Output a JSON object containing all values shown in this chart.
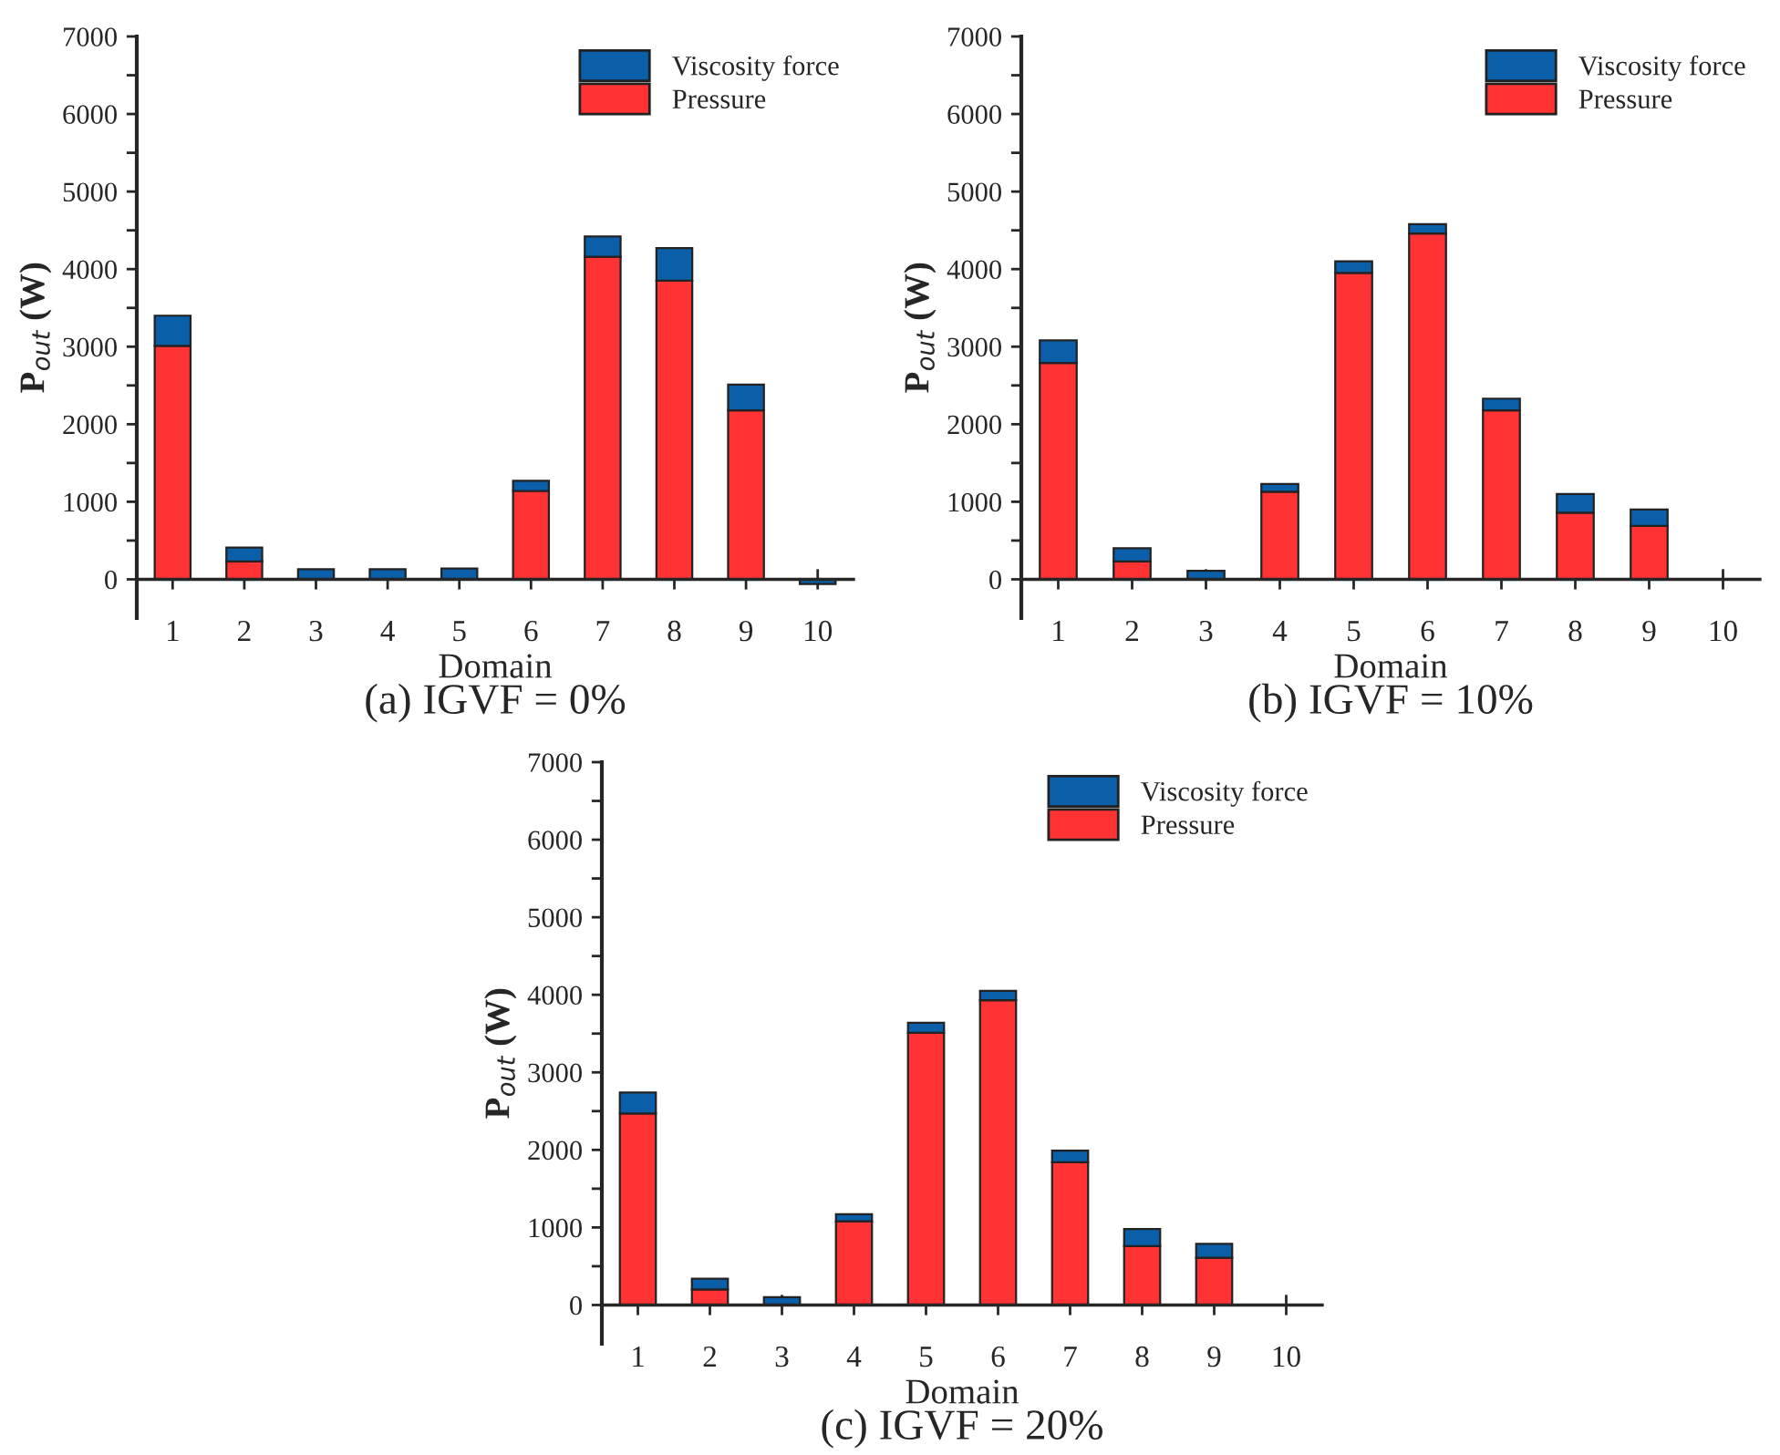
{
  "chart_data": [
    {
      "type": "bar",
      "title": "(a) IGVF = 0%",
      "xlabel": "Domain",
      "ylabel": "P$_{out}$ (W)",
      "stacked": true,
      "legend": "top right",
      "categories": [
        "1",
        "2",
        "3",
        "4",
        "5",
        "6",
        "7",
        "8",
        "9",
        "10"
      ],
      "series": [
        {
          "name": "Pressure",
          "color": "#ff3333",
          "values": [
            3010,
            230,
            null,
            null,
            null,
            1140,
            4160,
            3850,
            2180,
            null
          ]
        },
        {
          "name": "Viscosity force",
          "color": "#0a5fa8",
          "values": [
            390,
            180,
            130,
            130,
            140,
            130,
            260,
            420,
            330,
            -60
          ]
        }
      ],
      "ylim": [
        -500,
        7000
      ],
      "yticks": [
        0,
        {
          "value": 500,
          "label": null
        },
        1000,
        {
          "value": 1500,
          "label": null
        },
        2000,
        {
          "value": 2500,
          "label": null
        },
        3000,
        {
          "value": 3500,
          "label": null
        },
        4000,
        {
          "value": 4500,
          "label": null
        },
        5000,
        {
          "value": 5500,
          "label": null
        },
        6000,
        {
          "value": 6500,
          "label": null
        },
        7000
      ]
    },
    {
      "type": "bar",
      "title": "(b) IGVF = 10%",
      "xlabel": "Domain",
      "ylabel": "P$_{out}$ (W)",
      "stacked": true,
      "legend": "top right",
      "categories": [
        "1",
        "2",
        "3",
        "4",
        "5",
        "6",
        "7",
        "8",
        "9",
        "10"
      ],
      "series": [
        {
          "name": "Pressure",
          "color": "#ff3333",
          "values": [
            2790,
            230,
            null,
            1130,
            3950,
            4460,
            2180,
            860,
            690,
            null
          ]
        },
        {
          "name": "Viscosity force",
          "color": "#0a5fa8",
          "values": [
            290,
            170,
            110,
            100,
            150,
            120,
            150,
            240,
            210,
            null
          ]
        }
      ],
      "ylim": [
        -500,
        7000
      ],
      "yticks": [
        0,
        {
          "value": 500,
          "label": null
        },
        1000,
        {
          "value": 1500,
          "label": null
        },
        2000,
        {
          "value": 2500,
          "label": null
        },
        3000,
        {
          "value": 3500,
          "label": null
        },
        4000,
        {
          "value": 4500,
          "label": null
        },
        5000,
        {
          "value": 5500,
          "label": null
        },
        6000,
        {
          "value": 6500,
          "label": null
        },
        7000
      ]
    },
    {
      "type": "bar",
      "title": "(c) IGVF = 20%",
      "xlabel": "Domain",
      "ylabel": "P$_{out}$ (W)",
      "stacked": true,
      "legend": "top right",
      "categories": [
        "1",
        "2",
        "3",
        "4",
        "5",
        "6",
        "7",
        "8",
        "9",
        "10"
      ],
      "series": [
        {
          "name": "Pressure",
          "color": "#ff3333",
          "values": [
            2470,
            200,
            null,
            1080,
            3510,
            3930,
            1840,
            760,
            610,
            null
          ]
        },
        {
          "name": "Viscosity force",
          "color": "#0a5fa8",
          "values": [
            270,
            140,
            100,
            90,
            130,
            120,
            150,
            220,
            180,
            null
          ]
        }
      ],
      "ylim": [
        -500,
        7000
      ],
      "yticks": [
        0,
        {
          "value": 500,
          "label": null
        },
        1000,
        {
          "value": 1500,
          "label": null
        },
        2000,
        {
          "value": 2500,
          "label": null
        },
        3000,
        {
          "value": 3500,
          "label": null
        },
        4000,
        {
          "value": 4500,
          "label": null
        },
        5000,
        {
          "value": 5500,
          "label": null
        },
        6000,
        {
          "value": 6500,
          "label": null
        },
        7000
      ]
    }
  ]
}
